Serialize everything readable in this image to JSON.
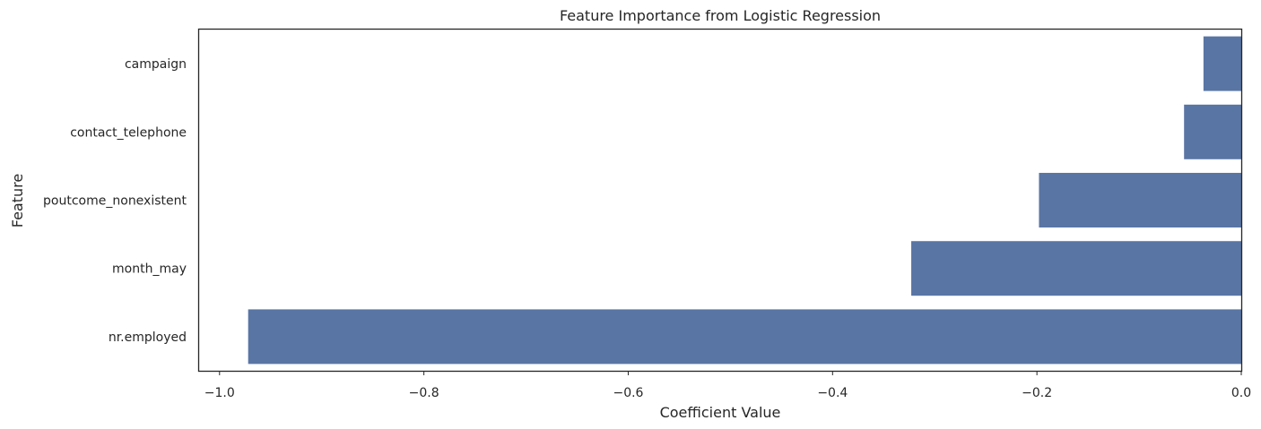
{
  "chart_data": {
    "type": "bar",
    "orientation": "horizontal",
    "title": "Feature Importance from Logistic Regression",
    "xlabel": "Coefficient Value",
    "ylabel": "Feature",
    "categories": [
      "campaign",
      "contact_telephone",
      "poutcome_nonexistent",
      "month_may",
      "nr.employed"
    ],
    "values": [
      -0.037,
      -0.056,
      -0.198,
      -0.323,
      -0.972
    ],
    "xlim": [
      -1.02,
      0.0
    ],
    "xticks": [
      -1.0,
      -0.8,
      -0.6,
      -0.4,
      -0.2,
      0.0
    ],
    "xtick_labels": [
      "−1.0",
      "−0.8",
      "−0.6",
      "−0.4",
      "−0.2",
      "0.0"
    ],
    "grid": false,
    "bar_color": "#5975a4"
  }
}
